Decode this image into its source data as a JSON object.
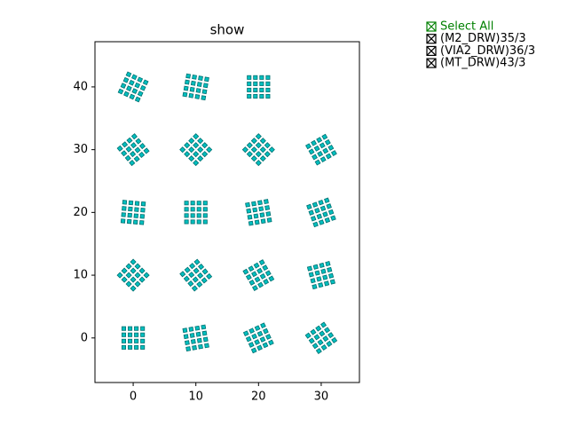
{
  "chart_data": {
    "type": "grid-scatter",
    "title": "show",
    "x": [
      0,
      10,
      20,
      30,
      0,
      10,
      20,
      30,
      0,
      10,
      20,
      30,
      0,
      10,
      20,
      30,
      0,
      10,
      20
    ],
    "y": [
      0,
      0,
      0,
      0,
      10,
      10,
      10,
      10,
      20,
      20,
      20,
      20,
      30,
      30,
      30,
      30,
      40,
      40,
      40
    ],
    "angles": [
      0,
      10,
      25,
      35,
      45,
      40,
      30,
      15,
      -5,
      0,
      10,
      20,
      40,
      45,
      45,
      30,
      -25,
      -10,
      0
    ],
    "color": "#00bfbf",
    "edge_color": "#007070",
    "xlim": [
      -6.1,
      36.1
    ],
    "ylim": [
      -7.1,
      47.2
    ],
    "xticks": [
      0,
      10,
      20,
      30
    ],
    "yticks": [
      0,
      10,
      20,
      30,
      40
    ],
    "check_buttons": [
      {
        "label": "Select All",
        "color": "#008000",
        "checked": true
      },
      {
        "label": "(M2_DRW)35/3",
        "color": "#000000",
        "checked": true
      },
      {
        "label": "(VIA2_DRW)36/3",
        "color": "#000000",
        "checked": true
      },
      {
        "label": "(MT_DRW)43/3",
        "color": "#000000",
        "checked": true
      }
    ]
  }
}
